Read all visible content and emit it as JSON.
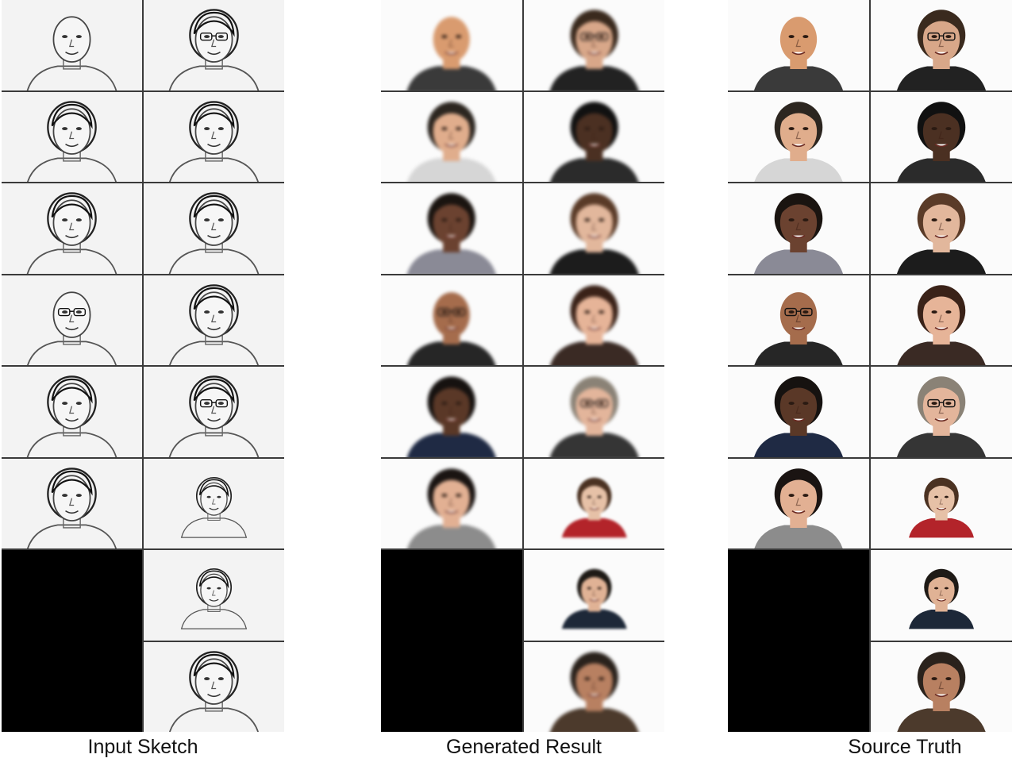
{
  "columns": {
    "sketch_label": "Input Sketch",
    "generated_label": "Generated Result",
    "truth_label": "Source Truth"
  },
  "rows": [
    {
      "left": {
        "skin": "#d99b6f",
        "hair": "none",
        "shirt": "#3a3a3a",
        "bg": "#ffffff"
      },
      "right": {
        "skin": "#d8a789",
        "hair": "#3a2a1e",
        "shirt": "#222222",
        "bg": "#ffffff",
        "glasses": true
      }
    },
    {
      "left": {
        "skin": "#e0ad8c",
        "hair": "#2c2620",
        "shirt": "#d6d6d6",
        "bg": "#ffffff"
      },
      "right": {
        "skin": "#4b3022",
        "hair": "#111111",
        "shirt": "#2b2b2b",
        "bg": "#ffffff"
      }
    },
    {
      "left": {
        "skin": "#6b4230",
        "hair": "#1a1410",
        "shirt": "#8a8a96",
        "bg": "#ffffff"
      },
      "right": {
        "skin": "#e2b79c",
        "hair": "#5a3b28",
        "shirt": "#1c1c1c",
        "bg": "#ffffff"
      }
    },
    {
      "left": {
        "skin": "#a56c4c",
        "hair": "none",
        "shirt": "#262626",
        "bg": "#ffffff",
        "glasses": true
      },
      "right": {
        "skin": "#e6b498",
        "hair": "#3a2218",
        "shirt": "#3a2a24",
        "bg": "#ffffff"
      }
    },
    {
      "left": {
        "skin": "#5a3827",
        "hair": "#161210",
        "shirt": "#1f2a44",
        "bg": "#ffffff"
      },
      "right": {
        "skin": "#e3b59b",
        "hair": "#8a8276",
        "shirt": "#353535",
        "bg": "#ffffff",
        "glasses": true
      }
    },
    {
      "left": {
        "skin": "#e2b093",
        "hair": "#1a1412",
        "shirt": "#8c8c8c",
        "bg": "#ffffff"
      },
      "right": {
        "skin": "#e6c1a7",
        "hair": "#4b3222",
        "shirt": "#b3242a",
        "bg": "#ffffff",
        "small": true
      }
    },
    {
      "left": {
        "black": true
      },
      "right": {
        "skin": "#e0b295",
        "hair": "#1e1a16",
        "shirt": "#1d2838",
        "bg": "#ffffff",
        "small": true
      }
    },
    {
      "left": {
        "black": true
      },
      "right": {
        "skin": "#b88061",
        "hair": "#2a221c",
        "shirt": "#4c3a2c",
        "bg": "#ffffff"
      }
    }
  ]
}
